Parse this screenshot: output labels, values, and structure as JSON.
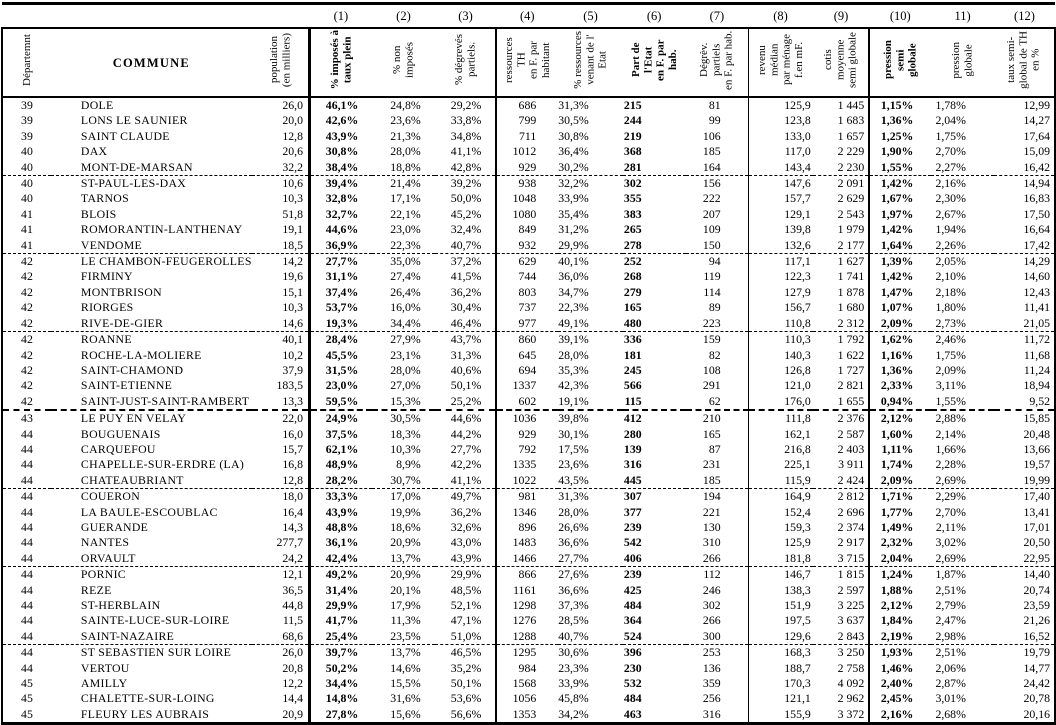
{
  "table": {
    "corner": {
      "dept": "Départemnt",
      "commune": "COMMUNE",
      "population": "population\n(en milliers)"
    },
    "col_numbers": [
      "(1)",
      "(2)",
      "(3)",
      "(4)",
      "(5)",
      "(6)",
      "(7)",
      "(8)",
      "(9)",
      "(10)",
      "11)",
      "(12)"
    ],
    "col_headers": [
      "% imposés à\ntaux plein",
      "% non imposés",
      "% dégrevés\npartiels.",
      "ressources TH\nen F. par\nhabitant",
      "% ressources\nvenant de l'\nEtat",
      "Part de l'Etat\nen F. par hab.",
      "Dégrèv. partiels\nen F. par hab.",
      "revenu médian\npar ménage\nf.en mF.",
      "cotis moyenne\nsemi globale",
      "pression semi\nglobale",
      "pression\nglobale",
      "taux semi-\nglobal de TH\nen %"
    ],
    "bold_columns": [
      "(1)",
      "(6)",
      "(10)"
    ]
  },
  "rows": [
    [
      "39",
      "DOLE",
      "26,0",
      "46,1%",
      "24,8%",
      "29,2%",
      "686",
      "31,3%",
      "215",
      "81",
      "125,9",
      "1 445",
      "1,15%",
      "1,78%",
      "12,99"
    ],
    [
      "39",
      "LONS LE SAUNIER",
      "20,0",
      "42,6%",
      "23,6%",
      "33,8%",
      "799",
      "30,5%",
      "244",
      "99",
      "123,8",
      "1 683",
      "1,36%",
      "2,04%",
      "14,27"
    ],
    [
      "39",
      "SAINT CLAUDE",
      "12,8",
      "43,9%",
      "21,3%",
      "34,8%",
      "711",
      "30,8%",
      "219",
      "106",
      "133,0",
      "1 657",
      "1,25%",
      "1,75%",
      "17,64"
    ],
    [
      "40",
      "DAX",
      "20,6",
      "30,8%",
      "28,0%",
      "41,1%",
      "1012",
      "36,4%",
      "368",
      "185",
      "117,0",
      "2 229",
      "1,90%",
      "2,70%",
      "15,09"
    ],
    [
      "40",
      "MONT-DE-MARSAN",
      "32,2",
      "38,4%",
      "18,8%",
      "42,8%",
      "929",
      "30,2%",
      "281",
      "164",
      "143,4",
      "2 230",
      "1,55%",
      "2,27%",
      "16,42"
    ],
    [
      "40",
      "ST-PAUL-LES-DAX",
      "10,6",
      "39,4%",
      "21,4%",
      "39,2%",
      "938",
      "32,2%",
      "302",
      "156",
      "147,6",
      "2 091",
      "1,42%",
      "2,16%",
      "14,94"
    ],
    [
      "40",
      "TARNOS",
      "10,3",
      "32,8%",
      "17,1%",
      "50,0%",
      "1048",
      "33,9%",
      "355",
      "222",
      "157,7",
      "2 629",
      "1,67%",
      "2,30%",
      "16,83"
    ],
    [
      "41",
      "BLOIS",
      "51,8",
      "32,7%",
      "22,1%",
      "45,2%",
      "1080",
      "35,4%",
      "383",
      "207",
      "129,1",
      "2 543",
      "1,97%",
      "2,67%",
      "17,50"
    ],
    [
      "41",
      "ROMORANTIN-LANTHENAY",
      "19,1",
      "44,6%",
      "23,0%",
      "32,4%",
      "849",
      "31,2%",
      "265",
      "109",
      "139,8",
      "1 979",
      "1,42%",
      "1,94%",
      "16,64"
    ],
    [
      "41",
      "VENDOME",
      "18,5",
      "36,9%",
      "22,3%",
      "40,7%",
      "932",
      "29,9%",
      "278",
      "150",
      "132,6",
      "2 177",
      "1,64%",
      "2,26%",
      "17,42"
    ],
    [
      "42",
      "LE CHAMBON-FEUGEROLLES",
      "14,2",
      "27,7%",
      "35,0%",
      "37,2%",
      "629",
      "40,1%",
      "252",
      "94",
      "117,1",
      "1 627",
      "1,39%",
      "2,05%",
      "14,29"
    ],
    [
      "42",
      "FIRMINY",
      "19,6",
      "31,1%",
      "27,4%",
      "41,5%",
      "744",
      "36,0%",
      "268",
      "119",
      "122,3",
      "1 741",
      "1,42%",
      "2,10%",
      "14,60"
    ],
    [
      "42",
      "MONTBRISON",
      "15,1",
      "37,4%",
      "26,4%",
      "36,2%",
      "803",
      "34,7%",
      "279",
      "114",
      "127,9",
      "1 878",
      "1,47%",
      "2,18%",
      "12,43"
    ],
    [
      "42",
      "RIORGES",
      "10,3",
      "53,7%",
      "16,0%",
      "30,4%",
      "737",
      "22,3%",
      "165",
      "89",
      "156,7",
      "1 680",
      "1,07%",
      "1,80%",
      "11,41"
    ],
    [
      "42",
      "RIVE-DE-GIER",
      "14,6",
      "19,3%",
      "34,4%",
      "46,4%",
      "977",
      "49,1%",
      "480",
      "223",
      "110,8",
      "2 312",
      "2,09%",
      "2,73%",
      "21,05"
    ],
    [
      "42",
      "ROANNE",
      "40,1",
      "28,4%",
      "27,9%",
      "43,7%",
      "860",
      "39,1%",
      "336",
      "159",
      "110,3",
      "1 792",
      "1,62%",
      "2,46%",
      "11,72"
    ],
    [
      "42",
      "ROCHE-LA-MOLIERE",
      "10,2",
      "45,5%",
      "23,1%",
      "31,3%",
      "645",
      "28,0%",
      "181",
      "82",
      "140,3",
      "1 622",
      "1,16%",
      "1,75%",
      "11,68"
    ],
    [
      "42",
      "SAINT-CHAMOND",
      "37,9",
      "31,5%",
      "28,0%",
      "40,6%",
      "694",
      "35,3%",
      "245",
      "108",
      "126,8",
      "1 727",
      "1,36%",
      "2,09%",
      "11,24"
    ],
    [
      "42",
      "SAINT-ETIENNE",
      "183,5",
      "23,0%",
      "27,0%",
      "50,1%",
      "1337",
      "42,3%",
      "566",
      "291",
      "121,0",
      "2 821",
      "2,33%",
      "3,11%",
      "18,94"
    ],
    [
      "42",
      "SAINT-JUST-SAINT-RAMBERT",
      "13,3",
      "59,5%",
      "15,3%",
      "25,2%",
      "602",
      "19,1%",
      "115",
      "62",
      "176,0",
      "1 655",
      "0,94%",
      "1,55%",
      "9,52"
    ],
    [
      "43",
      "LE PUY EN VELAY",
      "22,0",
      "24,9%",
      "30,5%",
      "44,6%",
      "1036",
      "39,8%",
      "412",
      "210",
      "111,8",
      "2 376",
      "2,12%",
      "2,88%",
      "15,85"
    ],
    [
      "44",
      "BOUGUENAIS",
      "16,0",
      "37,5%",
      "18,3%",
      "44,2%",
      "929",
      "30,1%",
      "280",
      "165",
      "162,1",
      "2 587",
      "1,60%",
      "2,14%",
      "20,48"
    ],
    [
      "44",
      "CARQUEFOU",
      "15,7",
      "62,1%",
      "10,3%",
      "27,7%",
      "792",
      "17,5%",
      "139",
      "87",
      "216,8",
      "2 403",
      "1,11%",
      "1,66%",
      "13,66"
    ],
    [
      "44",
      "CHAPELLE-SUR-ERDRE (LA)",
      "16,8",
      "48,9%",
      "8,9%",
      "42,2%",
      "1335",
      "23,6%",
      "316",
      "231",
      "225,1",
      "3 911",
      "1,74%",
      "2,28%",
      "19,57"
    ],
    [
      "44",
      "CHATEAUBRIANT",
      "12,8",
      "28,2%",
      "30,7%",
      "41,1%",
      "1022",
      "43,5%",
      "445",
      "185",
      "115,9",
      "2 424",
      "2,09%",
      "2,69%",
      "19,99"
    ],
    [
      "44",
      "COUERON",
      "18,0",
      "33,3%",
      "17,0%",
      "49,7%",
      "981",
      "31,3%",
      "307",
      "194",
      "164,9",
      "2 812",
      "1,71%",
      "2,29%",
      "17,40"
    ],
    [
      "44",
      "LA BAULE-ESCOUBLAC",
      "16,4",
      "43,9%",
      "19,9%",
      "36,2%",
      "1346",
      "28,0%",
      "377",
      "221",
      "152,4",
      "2 696",
      "1,77%",
      "2,70%",
      "13,41"
    ],
    [
      "44",
      "GUERANDE",
      "14,3",
      "48,8%",
      "18,6%",
      "32,6%",
      "896",
      "26,6%",
      "239",
      "130",
      "159,3",
      "2 374",
      "1,49%",
      "2,11%",
      "17,01"
    ],
    [
      "44",
      "NANTES",
      "277,7",
      "36,1%",
      "20,9%",
      "43,0%",
      "1483",
      "36,6%",
      "542",
      "310",
      "125,9",
      "2 917",
      "2,32%",
      "3,02%",
      "20,50"
    ],
    [
      "44",
      "ORVAULT",
      "24,2",
      "42,4%",
      "13,7%",
      "43,9%",
      "1466",
      "27,7%",
      "406",
      "266",
      "181,8",
      "3 715",
      "2,04%",
      "2,69%",
      "22,95"
    ],
    [
      "44",
      "PORNIC",
      "12,1",
      "49,2%",
      "20,9%",
      "29,9%",
      "866",
      "27,6%",
      "239",
      "112",
      "146,7",
      "1 815",
      "1,24%",
      "1,87%",
      "14,40"
    ],
    [
      "44",
      "REZE",
      "36,5",
      "31,4%",
      "20,1%",
      "48,5%",
      "1161",
      "36,6%",
      "425",
      "246",
      "138,3",
      "2 597",
      "1,88%",
      "2,51%",
      "20,74"
    ],
    [
      "44",
      "ST-HERBLAIN",
      "44,8",
      "29,9%",
      "17,9%",
      "52,1%",
      "1298",
      "37,3%",
      "484",
      "302",
      "151,9",
      "3 225",
      "2,12%",
      "2,79%",
      "23,59"
    ],
    [
      "44",
      "SAINTE-LUCE-SUR-LOIRE",
      "11,5",
      "41,7%",
      "11,3%",
      "47,1%",
      "1276",
      "28,5%",
      "364",
      "266",
      "197,5",
      "3 637",
      "1,84%",
      "2,47%",
      "21,26"
    ],
    [
      "44",
      "SAINT-NAZAIRE",
      "68,6",
      "25,4%",
      "23,5%",
      "51,0%",
      "1288",
      "40,7%",
      "524",
      "300",
      "129,6",
      "2 843",
      "2,19%",
      "2,98%",
      "16,52"
    ],
    [
      "44",
      "ST SEBASTIEN SUR LOIRE",
      "26,0",
      "39,7%",
      "13,7%",
      "46,5%",
      "1295",
      "30,6%",
      "396",
      "253",
      "168,3",
      "3 250",
      "1,93%",
      "2,51%",
      "19,79"
    ],
    [
      "44",
      "VERTOU",
      "20,8",
      "50,2%",
      "14,6%",
      "35,2%",
      "984",
      "23,3%",
      "230",
      "136",
      "188,7",
      "2 758",
      "1,46%",
      "2,06%",
      "14,77"
    ],
    [
      "45",
      "AMILLY",
      "12,2",
      "34,4%",
      "15,5%",
      "50,1%",
      "1568",
      "33,9%",
      "532",
      "359",
      "170,3",
      "4 092",
      "2,40%",
      "2,87%",
      "24,42"
    ],
    [
      "45",
      "CHALETTE-SUR-LOING",
      "14,4",
      "14,8%",
      "31,6%",
      "53,6%",
      "1056",
      "45,8%",
      "484",
      "256",
      "121,1",
      "2 962",
      "2,45%",
      "3,01%",
      "20,78"
    ],
    [
      "45",
      "FLEURY LES AUBRAIS",
      "20,9",
      "27,8%",
      "15,6%",
      "56,6%",
      "1353",
      "34,2%",
      "463",
      "316",
      "155,9",
      "3 372",
      "2,16%",
      "2,68%",
      "20,16"
    ]
  ],
  "separators": {
    "dashed_after_rows": [
      5,
      10,
      15,
      25,
      30,
      35
    ],
    "bold_dashed_after_rows": [
      20
    ]
  }
}
